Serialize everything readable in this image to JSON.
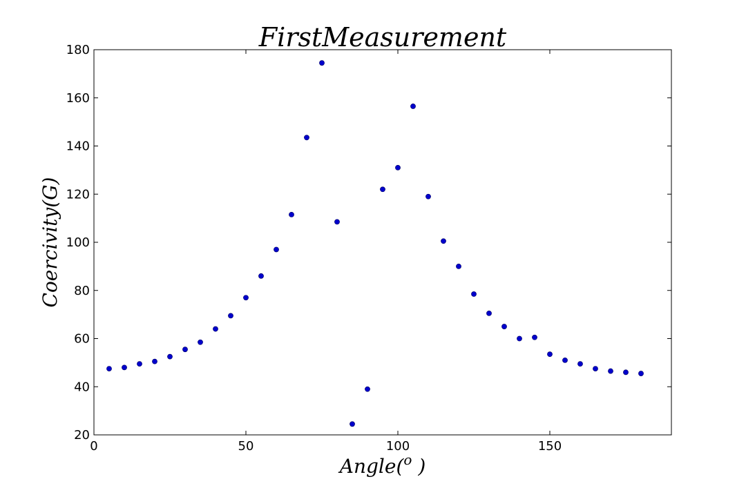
{
  "chart_data": {
    "type": "scatter",
    "title": "FirstMeasurement",
    "xlabel": "Angle(o )",
    "xlabel_base": "Angle(",
    "xlabel_sup": "o",
    "xlabel_tail": " )",
    "ylabel": "Coercivity(G)",
    "xlim": [
      0,
      190
    ],
    "ylim": [
      20,
      180
    ],
    "xticks": [
      0,
      50,
      100,
      150
    ],
    "yticks": [
      20,
      40,
      60,
      80,
      100,
      120,
      140,
      160,
      180
    ],
    "grid": false,
    "marker_color": "#0000cc",
    "series": [
      {
        "x": [
          5,
          10,
          15,
          20,
          25,
          30,
          35,
          40,
          45,
          50,
          55,
          60,
          65,
          70,
          75,
          80,
          85,
          90,
          95,
          100,
          105,
          110,
          115,
          120,
          125,
          130,
          135,
          140,
          145,
          150,
          155,
          160,
          165,
          170,
          175,
          180
        ],
        "y": [
          47.5,
          48,
          49.5,
          50.5,
          52.5,
          55.5,
          58.5,
          64,
          69.5,
          77,
          86,
          97,
          111.5,
          143.5,
          174.5,
          108.5,
          24.5,
          39,
          122,
          131,
          156.5,
          119,
          100.5,
          90,
          78.5,
          70.5,
          65,
          60,
          60.5,
          53.5,
          51,
          49.5,
          47.5,
          46.5,
          46,
          45.5
        ]
      }
    ]
  }
}
